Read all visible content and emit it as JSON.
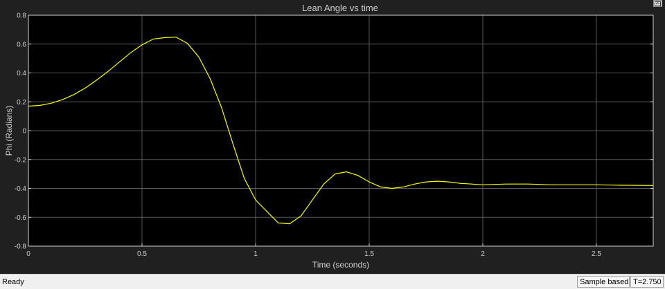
{
  "window": {
    "undock_icon": "undock-icon"
  },
  "status_bar": {
    "ready": "Ready",
    "mode": "Sample based",
    "time": "T=2.750"
  },
  "colors": {
    "plot_bg": "#000000",
    "frame_bg": "#202020",
    "grid": "#5a5a5a",
    "line": "#ffff00",
    "text": "#cfcfcf"
  },
  "chart_data": {
    "type": "line",
    "title": "Lean Angle vs time",
    "xlabel": "Time (seconds)",
    "ylabel": "Phi (Radians)",
    "xlim": [
      0,
      2.75
    ],
    "ylim": [
      -0.8,
      0.8
    ],
    "grid": true,
    "x_ticks": [
      0,
      0.5,
      1,
      1.5,
      2,
      2.5
    ],
    "x_tick_labels": [
      "0",
      "0.5",
      "1",
      "1.5",
      "2",
      "2.5"
    ],
    "y_ticks": [
      0.8,
      0.6,
      0.4,
      0.2,
      0,
      -0.2,
      -0.4,
      -0.6,
      -0.8
    ],
    "y_tick_labels": [
      "0.8",
      "0.6",
      "0.4",
      "0.2",
      "0",
      "-0.2",
      "-0.4",
      "-0.6",
      "-0.8"
    ],
    "series": [
      {
        "color": "#ffff00",
        "x": [
          0,
          0.05,
          0.1,
          0.15,
          0.2,
          0.25,
          0.3,
          0.35,
          0.4,
          0.45,
          0.5,
          0.55,
          0.6,
          0.65,
          0.7,
          0.75,
          0.8,
          0.85,
          0.9,
          0.95,
          1.0,
          1.05,
          1.1,
          1.15,
          1.2,
          1.25,
          1.3,
          1.35,
          1.4,
          1.45,
          1.5,
          1.55,
          1.6,
          1.65,
          1.7,
          1.75,
          1.8,
          1.85,
          1.9,
          1.95,
          2.0,
          2.1,
          2.2,
          2.3,
          2.4,
          2.5,
          2.6,
          2.75
        ],
        "y": [
          0.17,
          0.175,
          0.19,
          0.215,
          0.25,
          0.295,
          0.35,
          0.41,
          0.475,
          0.54,
          0.595,
          0.635,
          0.645,
          0.648,
          0.605,
          0.51,
          0.36,
          0.16,
          -0.09,
          -0.33,
          -0.48,
          -0.56,
          -0.64,
          -0.645,
          -0.59,
          -0.48,
          -0.37,
          -0.3,
          -0.285,
          -0.31,
          -0.355,
          -0.39,
          -0.4,
          -0.39,
          -0.37,
          -0.355,
          -0.35,
          -0.355,
          -0.365,
          -0.37,
          -0.375,
          -0.37,
          -0.37,
          -0.375,
          -0.375,
          -0.375,
          -0.378,
          -0.38
        ]
      }
    ]
  }
}
